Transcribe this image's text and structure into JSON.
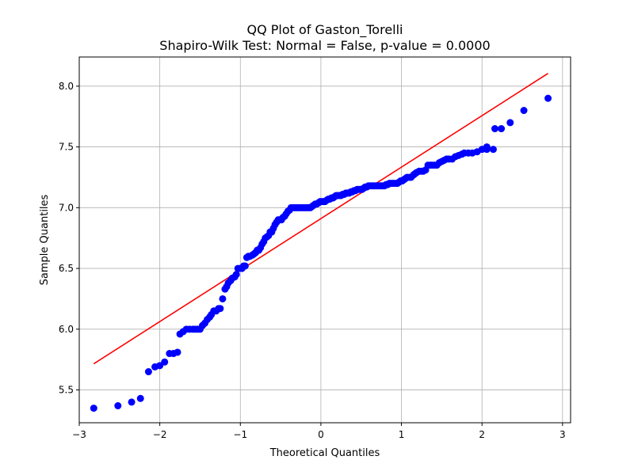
{
  "chart_data": {
    "type": "scatter",
    "title_line1": "QQ Plot of Gaston_Torelli",
    "title_line2": "Shapiro-Wilk Test: Normal = False, p-value = 0.0000",
    "xlabel": "Theoretical Quantiles",
    "ylabel": "Sample Quantiles",
    "xlim": [
      -3.0,
      3.1
    ],
    "ylim": [
      5.23,
      8.24
    ],
    "xticks": [
      {
        "value": -3,
        "label": "−3"
      },
      {
        "value": -2,
        "label": "−2"
      },
      {
        "value": -1,
        "label": "−1"
      },
      {
        "value": 0,
        "label": "0"
      },
      {
        "value": 1,
        "label": "1"
      },
      {
        "value": 2,
        "label": "2"
      },
      {
        "value": 3,
        "label": "3"
      }
    ],
    "yticks": [
      {
        "value": 5.5,
        "label": "5.5"
      },
      {
        "value": 6.0,
        "label": "6.0"
      },
      {
        "value": 6.5,
        "label": "6.5"
      },
      {
        "value": 7.0,
        "label": "7.0"
      },
      {
        "value": 7.5,
        "label": "7.5"
      },
      {
        "value": 8.0,
        "label": "8.0"
      }
    ],
    "grid": true,
    "point_color": "#0000ff",
    "line_color": "#ff0000",
    "reference_line": {
      "x": [
        -2.82,
        2.82
      ],
      "y": [
        5.715,
        8.105
      ]
    },
    "points": [
      [
        -2.82,
        5.35
      ],
      [
        -2.52,
        5.37
      ],
      [
        -2.35,
        5.4
      ],
      [
        -2.24,
        5.43
      ],
      [
        -2.14,
        5.65
      ],
      [
        -2.06,
        5.69
      ],
      [
        -2.0,
        5.7
      ],
      [
        -1.94,
        5.73
      ],
      [
        -1.88,
        5.8
      ],
      [
        -1.83,
        5.8
      ],
      [
        -1.78,
        5.81
      ],
      [
        -1.75,
        5.96
      ],
      [
        -1.71,
        5.98
      ],
      [
        -1.67,
        6.0
      ],
      [
        -1.63,
        6.0
      ],
      [
        -1.59,
        6.0
      ],
      [
        -1.56,
        6.0
      ],
      [
        -1.53,
        6.0
      ],
      [
        -1.5,
        6.0
      ],
      [
        -1.47,
        6.03
      ],
      [
        -1.44,
        6.05
      ],
      [
        -1.41,
        6.08
      ],
      [
        -1.38,
        6.1
      ],
      [
        -1.36,
        6.12
      ],
      [
        -1.33,
        6.15
      ],
      [
        -1.3,
        6.15
      ],
      [
        -1.27,
        6.17
      ],
      [
        -1.25,
        6.17
      ],
      [
        -1.22,
        6.25
      ],
      [
        -1.19,
        6.33
      ],
      [
        -1.17,
        6.35
      ],
      [
        -1.15,
        6.38
      ],
      [
        -1.12,
        6.4
      ],
      [
        -1.1,
        6.42
      ],
      [
        -1.07,
        6.43
      ],
      [
        -1.05,
        6.45
      ],
      [
        -1.03,
        6.5
      ],
      [
        -1.01,
        6.5
      ],
      [
        -0.98,
        6.5
      ],
      [
        -0.96,
        6.52
      ],
      [
        -0.94,
        6.52
      ],
      [
        -0.92,
        6.59
      ],
      [
        -0.9,
        6.6
      ],
      [
        -0.88,
        6.6
      ],
      [
        -0.85,
        6.61
      ],
      [
        -0.83,
        6.62
      ],
      [
        -0.81,
        6.63
      ],
      [
        -0.79,
        6.65
      ],
      [
        -0.77,
        6.65
      ],
      [
        -0.75,
        6.67
      ],
      [
        -0.73,
        6.7
      ],
      [
        -0.71,
        6.72
      ],
      [
        -0.69,
        6.75
      ],
      [
        -0.67,
        6.76
      ],
      [
        -0.65,
        6.77
      ],
      [
        -0.63,
        6.8
      ],
      [
        -0.61,
        6.8
      ],
      [
        -0.59,
        6.83
      ],
      [
        -0.57,
        6.86
      ],
      [
        -0.55,
        6.88
      ],
      [
        -0.53,
        6.9
      ],
      [
        -0.51,
        6.9
      ],
      [
        -0.49,
        6.9
      ],
      [
        -0.47,
        6.92
      ],
      [
        -0.45,
        6.93
      ],
      [
        -0.43,
        6.95
      ],
      [
        -0.41,
        6.97
      ],
      [
        -0.39,
        6.98
      ],
      [
        -0.37,
        7.0
      ],
      [
        -0.35,
        7.0
      ],
      [
        -0.33,
        7.0
      ],
      [
        -0.31,
        7.0
      ],
      [
        -0.29,
        7.0
      ],
      [
        -0.27,
        7.0
      ],
      [
        -0.25,
        7.0
      ],
      [
        -0.23,
        7.0
      ],
      [
        -0.21,
        7.0
      ],
      [
        -0.19,
        7.0
      ],
      [
        -0.17,
        7.0
      ],
      [
        -0.15,
        7.0
      ],
      [
        -0.13,
        7.0
      ],
      [
        -0.11,
        7.01
      ],
      [
        -0.09,
        7.02
      ],
      [
        -0.07,
        7.03
      ],
      [
        -0.05,
        7.03
      ],
      [
        -0.03,
        7.04
      ],
      [
        -0.01,
        7.05
      ],
      [
        0.01,
        7.05
      ],
      [
        0.03,
        7.05
      ],
      [
        0.05,
        7.05
      ],
      [
        0.07,
        7.06
      ],
      [
        0.09,
        7.07
      ],
      [
        0.11,
        7.07
      ],
      [
        0.13,
        7.08
      ],
      [
        0.15,
        7.08
      ],
      [
        0.17,
        7.09
      ],
      [
        0.19,
        7.1
      ],
      [
        0.21,
        7.1
      ],
      [
        0.23,
        7.1
      ],
      [
        0.25,
        7.1
      ],
      [
        0.27,
        7.11
      ],
      [
        0.29,
        7.11
      ],
      [
        0.31,
        7.12
      ],
      [
        0.33,
        7.12
      ],
      [
        0.35,
        7.12
      ],
      [
        0.37,
        7.13
      ],
      [
        0.39,
        7.13
      ],
      [
        0.41,
        7.14
      ],
      [
        0.43,
        7.14
      ],
      [
        0.45,
        7.15
      ],
      [
        0.47,
        7.15
      ],
      [
        0.49,
        7.15
      ],
      [
        0.51,
        7.15
      ],
      [
        0.53,
        7.16
      ],
      [
        0.55,
        7.17
      ],
      [
        0.57,
        7.17
      ],
      [
        0.59,
        7.18
      ],
      [
        0.61,
        7.18
      ],
      [
        0.63,
        7.18
      ],
      [
        0.65,
        7.18
      ],
      [
        0.67,
        7.18
      ],
      [
        0.69,
        7.18
      ],
      [
        0.71,
        7.18
      ],
      [
        0.73,
        7.18
      ],
      [
        0.75,
        7.18
      ],
      [
        0.77,
        7.18
      ],
      [
        0.79,
        7.18
      ],
      [
        0.81,
        7.19
      ],
      [
        0.83,
        7.19
      ],
      [
        0.85,
        7.2
      ],
      [
        0.87,
        7.2
      ],
      [
        0.89,
        7.2
      ],
      [
        0.91,
        7.2
      ],
      [
        0.93,
        7.2
      ],
      [
        0.95,
        7.2
      ],
      [
        0.97,
        7.21
      ],
      [
        0.99,
        7.22
      ],
      [
        1.01,
        7.22
      ],
      [
        1.03,
        7.23
      ],
      [
        1.05,
        7.24
      ],
      [
        1.07,
        7.25
      ],
      [
        1.1,
        7.25
      ],
      [
        1.12,
        7.25
      ],
      [
        1.15,
        7.27
      ],
      [
        1.17,
        7.28
      ],
      [
        1.19,
        7.29
      ],
      [
        1.22,
        7.3
      ],
      [
        1.25,
        7.3
      ],
      [
        1.27,
        7.3
      ],
      [
        1.3,
        7.31
      ],
      [
        1.33,
        7.35
      ],
      [
        1.36,
        7.35
      ],
      [
        1.38,
        7.35
      ],
      [
        1.41,
        7.35
      ],
      [
        1.44,
        7.35
      ],
      [
        1.47,
        7.37
      ],
      [
        1.5,
        7.38
      ],
      [
        1.53,
        7.39
      ],
      [
        1.56,
        7.4
      ],
      [
        1.59,
        7.4
      ],
      [
        1.63,
        7.4
      ],
      [
        1.67,
        7.42
      ],
      [
        1.71,
        7.43
      ],
      [
        1.75,
        7.44
      ],
      [
        1.78,
        7.45
      ],
      [
        1.83,
        7.45
      ],
      [
        1.88,
        7.45
      ],
      [
        1.94,
        7.46
      ],
      [
        2.0,
        7.48
      ],
      [
        2.06,
        7.48
      ],
      [
        2.14,
        7.48
      ],
      [
        2.06,
        7.5
      ],
      [
        2.16,
        7.65
      ],
      [
        2.24,
        7.65
      ],
      [
        2.35,
        7.7
      ],
      [
        2.52,
        7.8
      ],
      [
        2.82,
        7.9
      ]
    ]
  }
}
